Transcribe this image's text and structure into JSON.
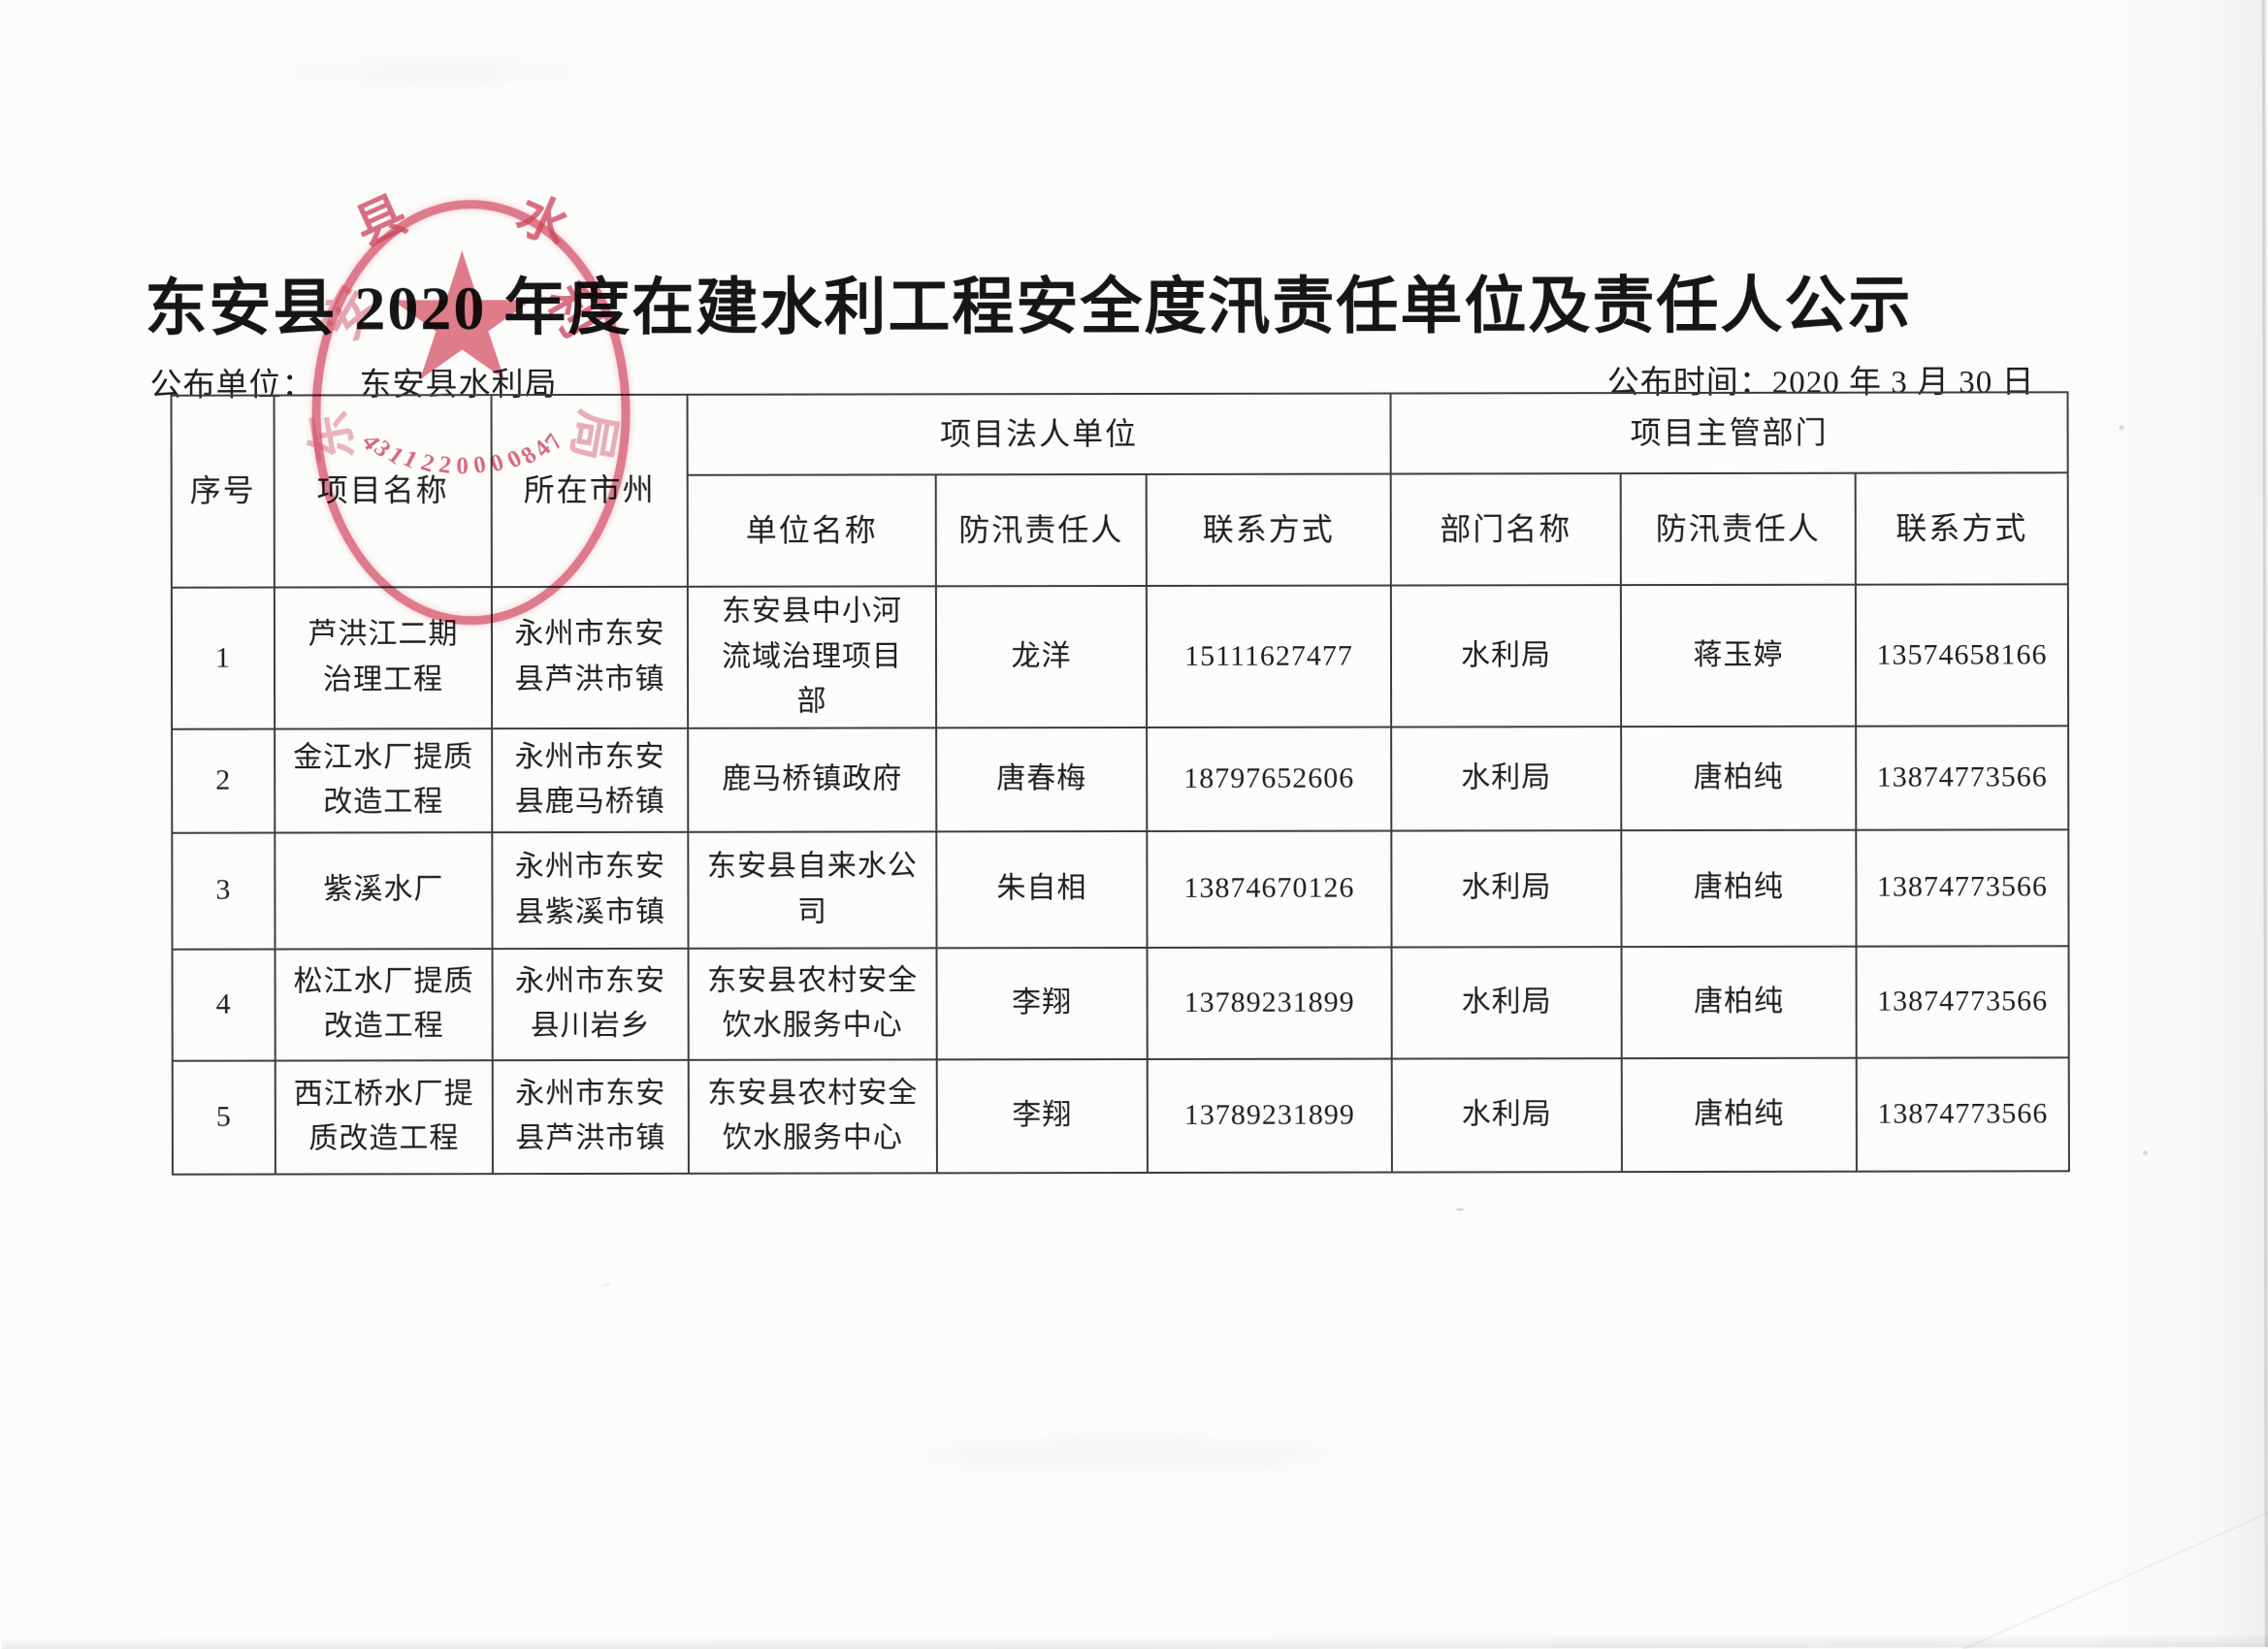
{
  "page": {
    "title": "东安县 2020 年度在建水利工程安全度汛责任单位及责任人公示",
    "publisher_label": "公布单位：",
    "publisher_value": "东安县水利局",
    "publish_date": "公布时间：2020 年 3 月 30 日"
  },
  "seal": {
    "organization": "东安县水利局",
    "ring_chars": [
      "东",
      "安",
      "县",
      "水",
      "利",
      "局"
    ],
    "serial": "4311220000847",
    "color": "#d03e58"
  },
  "table": {
    "headers": {
      "seq": "序号",
      "project": "项目名称",
      "location": "所在市州",
      "legal_group": "项目法人单位",
      "dept_group": "项目主管部门",
      "unit_name": "单位名称",
      "flood_officer": "防汛责任人",
      "contact": "联系方式",
      "dept_name": "部门名称",
      "dept_flood_officer": "防汛责任人",
      "dept_contact": "联系方式"
    },
    "rows": [
      {
        "seq": "1",
        "project": "芦洪江二期\n治理工程",
        "location": "永州市东安\n县芦洪市镇",
        "unit": "东安县中小河\n流域治理项目\n部",
        "officer": "龙洋",
        "phone": "15111627477",
        "dept": "水利局",
        "dept_officer": "蒋玉婷",
        "dept_phone": "13574658166"
      },
      {
        "seq": "2",
        "project": "金江水厂提质\n改造工程",
        "location": "永州市东安\n县鹿马桥镇",
        "unit": "鹿马桥镇政府",
        "officer": "唐春梅",
        "phone": "18797652606",
        "dept": "水利局",
        "dept_officer": "唐柏纯",
        "dept_phone": "13874773566"
      },
      {
        "seq": "3",
        "project": "紫溪水厂",
        "location": "永州市东安\n县紫溪市镇",
        "unit": "东安县自来水公\n司",
        "officer": "朱自相",
        "phone": "13874670126",
        "dept": "水利局",
        "dept_officer": "唐柏纯",
        "dept_phone": "13874773566"
      },
      {
        "seq": "4",
        "project": "松江水厂提质\n改造工程",
        "location": "永州市东安\n县川岩乡",
        "unit": "东安县农村安全\n饮水服务中心",
        "officer": "李翔",
        "phone": "13789231899",
        "dept": "水利局",
        "dept_officer": "唐柏纯",
        "dept_phone": "13874773566"
      },
      {
        "seq": "5",
        "project": "西江桥水厂提\n质改造工程",
        "location": "永州市东安\n县芦洪市镇",
        "unit": "东安县农村安全\n饮水服务中心",
        "officer": "李翔",
        "phone": "13789231899",
        "dept": "水利局",
        "dept_officer": "唐柏纯",
        "dept_phone": "13874773566"
      }
    ]
  }
}
